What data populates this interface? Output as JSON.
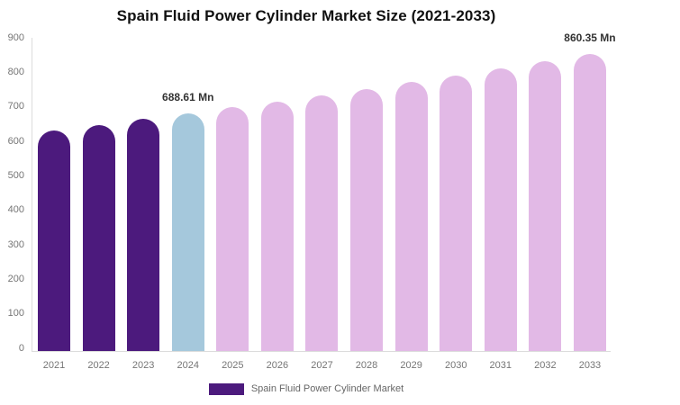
{
  "chart_data": {
    "type": "bar",
    "title": "Spain Fluid Power Cylinder Market Size (2021-2033)",
    "unit": "Mn",
    "categories": [
      "2021",
      "2022",
      "2023",
      "2024",
      "2025",
      "2026",
      "2027",
      "2028",
      "2029",
      "2030",
      "2031",
      "2032",
      "2033"
    ],
    "values": [
      639.4,
      655.4,
      671.8,
      688.61,
      705.9,
      723.5,
      741.6,
      760.2,
      779.2,
      798.8,
      818.8,
      839.3,
      860.35
    ],
    "bar_roles": [
      "historical",
      "historical",
      "historical",
      "current",
      "forecast",
      "forecast",
      "forecast",
      "forecast",
      "forecast",
      "forecast",
      "forecast",
      "forecast",
      "forecast"
    ],
    "colors": {
      "historical": "#4c1a7d",
      "current": "#a5c8dc",
      "forecast": "#e2b9e6",
      "axis_line": "#dcdcdc",
      "tick_text": "#757575",
      "annotation_text": "#333333"
    },
    "y_ticks": [
      900,
      800,
      700,
      600,
      500,
      400,
      300,
      200,
      100,
      0
    ],
    "ylim": [
      0,
      900
    ],
    "grid": false,
    "legend_position": "bottom",
    "legend_label": "Spain Fluid Power Cylinder Market",
    "annotations": [
      {
        "year": "2024",
        "label": "688.61 Mn"
      },
      {
        "year": "2033",
        "label": "860.35 Mn"
      }
    ]
  }
}
